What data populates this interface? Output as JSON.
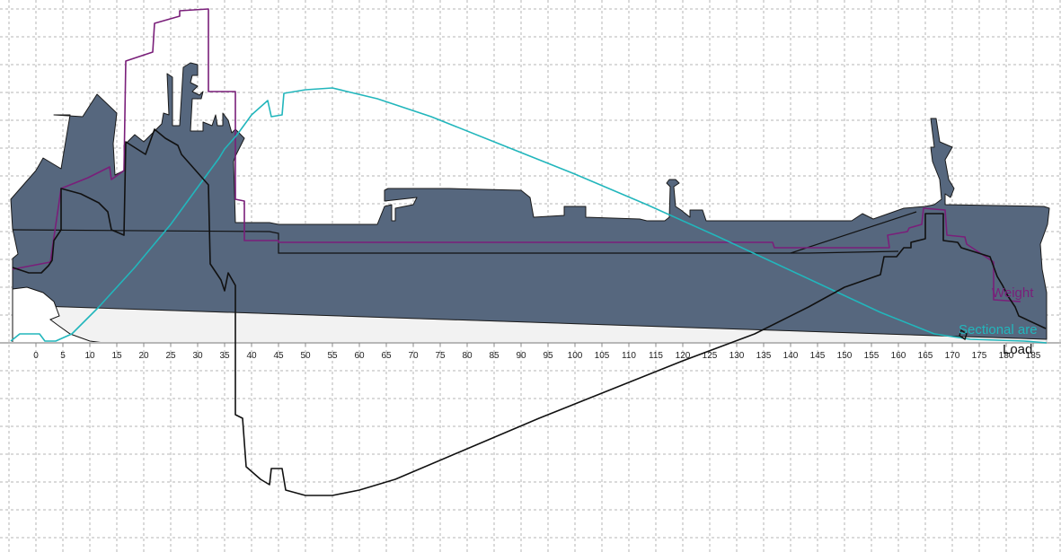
{
  "colors": {
    "background": "#ffffff",
    "grid": "#b4b4b4",
    "hull": "#56677e",
    "hull_outline": "#1a1a1a",
    "water_region": "#f2f2f2",
    "weight": "#7a1f7a",
    "sectional_area": "#22b6bc",
    "load": "#111111",
    "axis": "#b8b8b8"
  },
  "axis": {
    "frame_ticks": [
      "0",
      "5",
      "10",
      "15",
      "20",
      "25",
      "30",
      "35",
      "40",
      "45",
      "50",
      "55",
      "60",
      "65",
      "70",
      "75",
      "80",
      "85",
      "90",
      "95",
      "100",
      "105",
      "110",
      "115",
      "120",
      "125",
      "130",
      "135",
      "140",
      "145",
      "150",
      "155",
      "160",
      "165",
      "170",
      "175",
      "180",
      "185"
    ]
  },
  "labels": {
    "weight": "Weight",
    "sectional_area": "Sectional are",
    "load": "Load"
  },
  "chart_data": {
    "type": "line",
    "x_unit": "frame",
    "x_range": [
      -4,
      190
    ],
    "grid": true,
    "series": [
      {
        "name": "Weight",
        "color": "#7a1f7a"
      },
      {
        "name": "Sectional are",
        "color": "#22b6bc"
      },
      {
        "name": "Load",
        "color": "#111111"
      }
    ]
  }
}
